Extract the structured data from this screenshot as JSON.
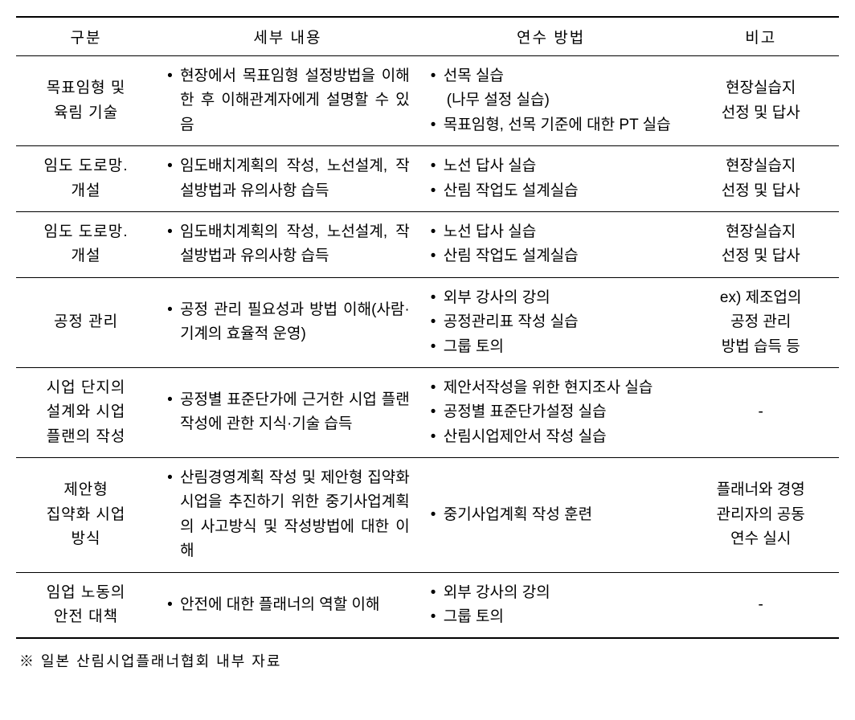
{
  "table": {
    "headers": {
      "category": "구분",
      "detail": "세부 내용",
      "method": "연수 방법",
      "note": "비고"
    },
    "rows": [
      {
        "category": "목표임형 및\n육림 기술",
        "details": [
          "현장에서 목표임형 설정방법을 이해한 후 이해관계자에게 설명할 수 있음"
        ],
        "methods": [
          "선목 실습",
          "__(나무 설정 실습)",
          "목표임형, 선목 기준에 대한 PT 실습"
        ],
        "note": "현장실습지\n선정 및 답사"
      },
      {
        "category": "임도 도로망.\n개설",
        "details": [
          "임도배치계획의 작성, 노선설계, 작설방법과 유의사항 습득"
        ],
        "methods": [
          "노선 답사 실습",
          "산림 작업도 설계실습"
        ],
        "note": "현장실습지\n선정 및 답사"
      },
      {
        "category": "임도 도로망.\n개설",
        "details": [
          "임도배치계획의 작성, 노선설계, 작설방법과 유의사항 습득"
        ],
        "methods": [
          "노선 답사 실습",
          "산림 작업도 설계실습"
        ],
        "note": "현장실습지\n선정 및 답사"
      },
      {
        "category": "공정 관리",
        "details": [
          "공정 관리 필요성과 방법 이해(사람·기계의 효율적 운영)"
        ],
        "methods": [
          "외부 강사의 강의",
          "공정관리표 작성 실습",
          "그룹 토의"
        ],
        "note": "ex) 제조업의\n공정 관리\n방법 습득 등"
      },
      {
        "category": "시업 단지의\n설계와 시업\n플랜의 작성",
        "details": [
          "공정별 표준단가에 근거한 시업 플랜 작성에 관한 지식·기술 습득"
        ],
        "methods": [
          "제안서작성을 위한 현지조사 실습",
          "공정별 표준단가설정 실습",
          "산림시업제안서 작성 실습"
        ],
        "note": "-"
      },
      {
        "category": "제안형\n집약화 시업\n방식",
        "details": [
          "산림경영계획 작성 및 제안형 집약화 시업을 추진하기 위한 중기사업계획의 사고방식 및 작성방법에 대한 이해"
        ],
        "methods": [
          "중기사업계획 작성 훈련"
        ],
        "note": "플래너와 경영\n관리자의 공동\n연수 실시"
      },
      {
        "category": "임업 노동의\n안전 대책",
        "details": [
          "안전에 대한 플래너의 역할 이해"
        ],
        "methods": [
          "외부 강사의 강의",
          "그룹 토의"
        ],
        "note": "-"
      }
    ]
  },
  "footnote": "※ 일본 산림시업플래너협회 내부 자료",
  "styling": {
    "font_family": "Malgun Gothic",
    "header_fontsize": 19,
    "cell_fontsize": 19,
    "footnote_fontsize": 18,
    "border_color": "#000000",
    "background_color": "#ffffff",
    "outer_border_width": 2,
    "inner_border_width": 1,
    "col_widths_pct": [
      17,
      32,
      32,
      19
    ],
    "line_height": 1.6
  }
}
